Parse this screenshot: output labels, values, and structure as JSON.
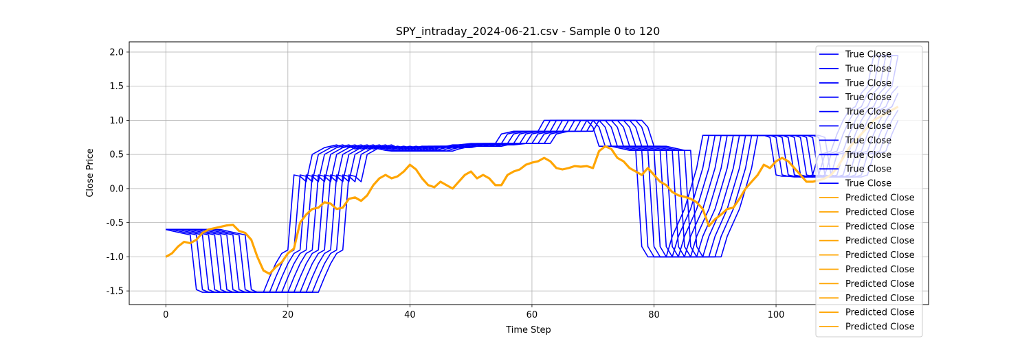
{
  "chart_data": {
    "type": "line",
    "title": "SPY_intraday_2024-06-21.csv - Sample 0 to 120",
    "xlabel": "Time Step",
    "ylabel": "Close Price",
    "xlim": [
      -6,
      125
    ],
    "ylim": [
      -1.7,
      2.15
    ],
    "xticks": [
      0,
      20,
      40,
      60,
      80,
      100
    ],
    "yticks": [
      -1.5,
      -1.0,
      -0.5,
      0.0,
      0.5,
      1.0,
      1.5,
      2.0
    ],
    "grid": true,
    "legend_position": "top-right",
    "colors": {
      "true": "#0000ff",
      "predicted": "#ffa500"
    },
    "true_close_base": [
      -0.6,
      -0.62,
      -0.64,
      -0.66,
      -0.68,
      -1.48,
      -1.52,
      -1.52,
      -1.52,
      -1.52,
      -1.52,
      -1.52,
      -1.52,
      -1.52,
      -1.52,
      -1.52,
      -1.52,
      -1.3,
      -1.1,
      -0.95,
      -0.9,
      0.2,
      0.18,
      0.1,
      0.5,
      0.55,
      0.6,
      0.62,
      0.64,
      0.6,
      0.62,
      0.58,
      0.6,
      0.62,
      0.6,
      0.58,
      0.56,
      0.55,
      0.55,
      0.58,
      0.6,
      0.6,
      0.62,
      0.62,
      0.62,
      0.62,
      0.62,
      0.64,
      0.64,
      0.65,
      0.66,
      0.66,
      0.66,
      0.66,
      0.66,
      0.8,
      0.82,
      0.84,
      0.84,
      0.84,
      0.84,
      0.84,
      1.0,
      1.0,
      1.0,
      1.0,
      1.0,
      1.0,
      1.0,
      1.0,
      0.9,
      0.62,
      0.62,
      0.62,
      0.6,
      0.58,
      0.56,
      0.56,
      -0.85,
      -1.0,
      -1.0,
      -1.0,
      -1.0,
      -0.7,
      -0.5,
      -0.3,
      0.0,
      0.3,
      0.78,
      0.78,
      0.78,
      0.78,
      0.78,
      0.78,
      0.78,
      0.78,
      0.78,
      0.78,
      0.78,
      0.75,
      0.2,
      0.18,
      0.18,
      0.17,
      0.17,
      0.17,
      0.2,
      0.5,
      0.52,
      0.55,
      0.8,
      1.0,
      1.15,
      1.2,
      1.4,
      1.5,
      1.95,
      1.95,
      1.95,
      1.95,
      1.95
    ],
    "true_close_shifts": [
      0,
      1,
      2,
      3,
      4,
      5,
      6,
      7,
      8,
      9
    ],
    "predicted_close": [
      -1.0,
      -0.95,
      -0.85,
      -0.78,
      -0.8,
      -0.75,
      -0.65,
      -0.6,
      -0.58,
      -0.56,
      -0.54,
      -0.53,
      -0.62,
      -0.65,
      -0.75,
      -1.0,
      -1.2,
      -1.25,
      -1.15,
      -1.08,
      -0.95,
      -0.88,
      -0.5,
      -0.38,
      -0.3,
      -0.28,
      -0.2,
      -0.22,
      -0.3,
      -0.28,
      -0.15,
      -0.13,
      -0.18,
      -0.1,
      0.05,
      0.15,
      0.2,
      0.15,
      0.18,
      0.25,
      0.35,
      0.28,
      0.15,
      0.05,
      0.02,
      0.1,
      0.05,
      0.0,
      0.1,
      0.2,
      0.25,
      0.15,
      0.2,
      0.15,
      0.05,
      0.05,
      0.2,
      0.25,
      0.28,
      0.35,
      0.38,
      0.4,
      0.45,
      0.4,
      0.3,
      0.28,
      0.3,
      0.33,
      0.32,
      0.33,
      0.3,
      0.55,
      0.62,
      0.58,
      0.45,
      0.4,
      0.3,
      0.25,
      0.2,
      0.3,
      0.2,
      0.1,
      0.05,
      -0.05,
      -0.1,
      -0.12,
      -0.15,
      -0.2,
      -0.3,
      -0.55,
      -0.45,
      -0.38,
      -0.3,
      -0.28,
      -0.15,
      0.0,
      0.1,
      0.2,
      0.35,
      0.3,
      0.4,
      0.45,
      0.4,
      0.3,
      0.2,
      0.1,
      0.1,
      0.12,
      0.15,
      0.2,
      0.3,
      0.45,
      0.6,
      0.7,
      0.8,
      0.9,
      1.0,
      1.05,
      1.1,
      1.15,
      1.2
    ],
    "legend": [
      "True Close",
      "True Close",
      "True Close",
      "True Close",
      "True Close",
      "True Close",
      "True Close",
      "True Close",
      "True Close",
      "True Close",
      "Predicted Close",
      "Predicted Close",
      "Predicted Close",
      "Predicted Close",
      "Predicted Close",
      "Predicted Close",
      "Predicted Close",
      "Predicted Close",
      "Predicted Close",
      "Predicted Close"
    ]
  }
}
